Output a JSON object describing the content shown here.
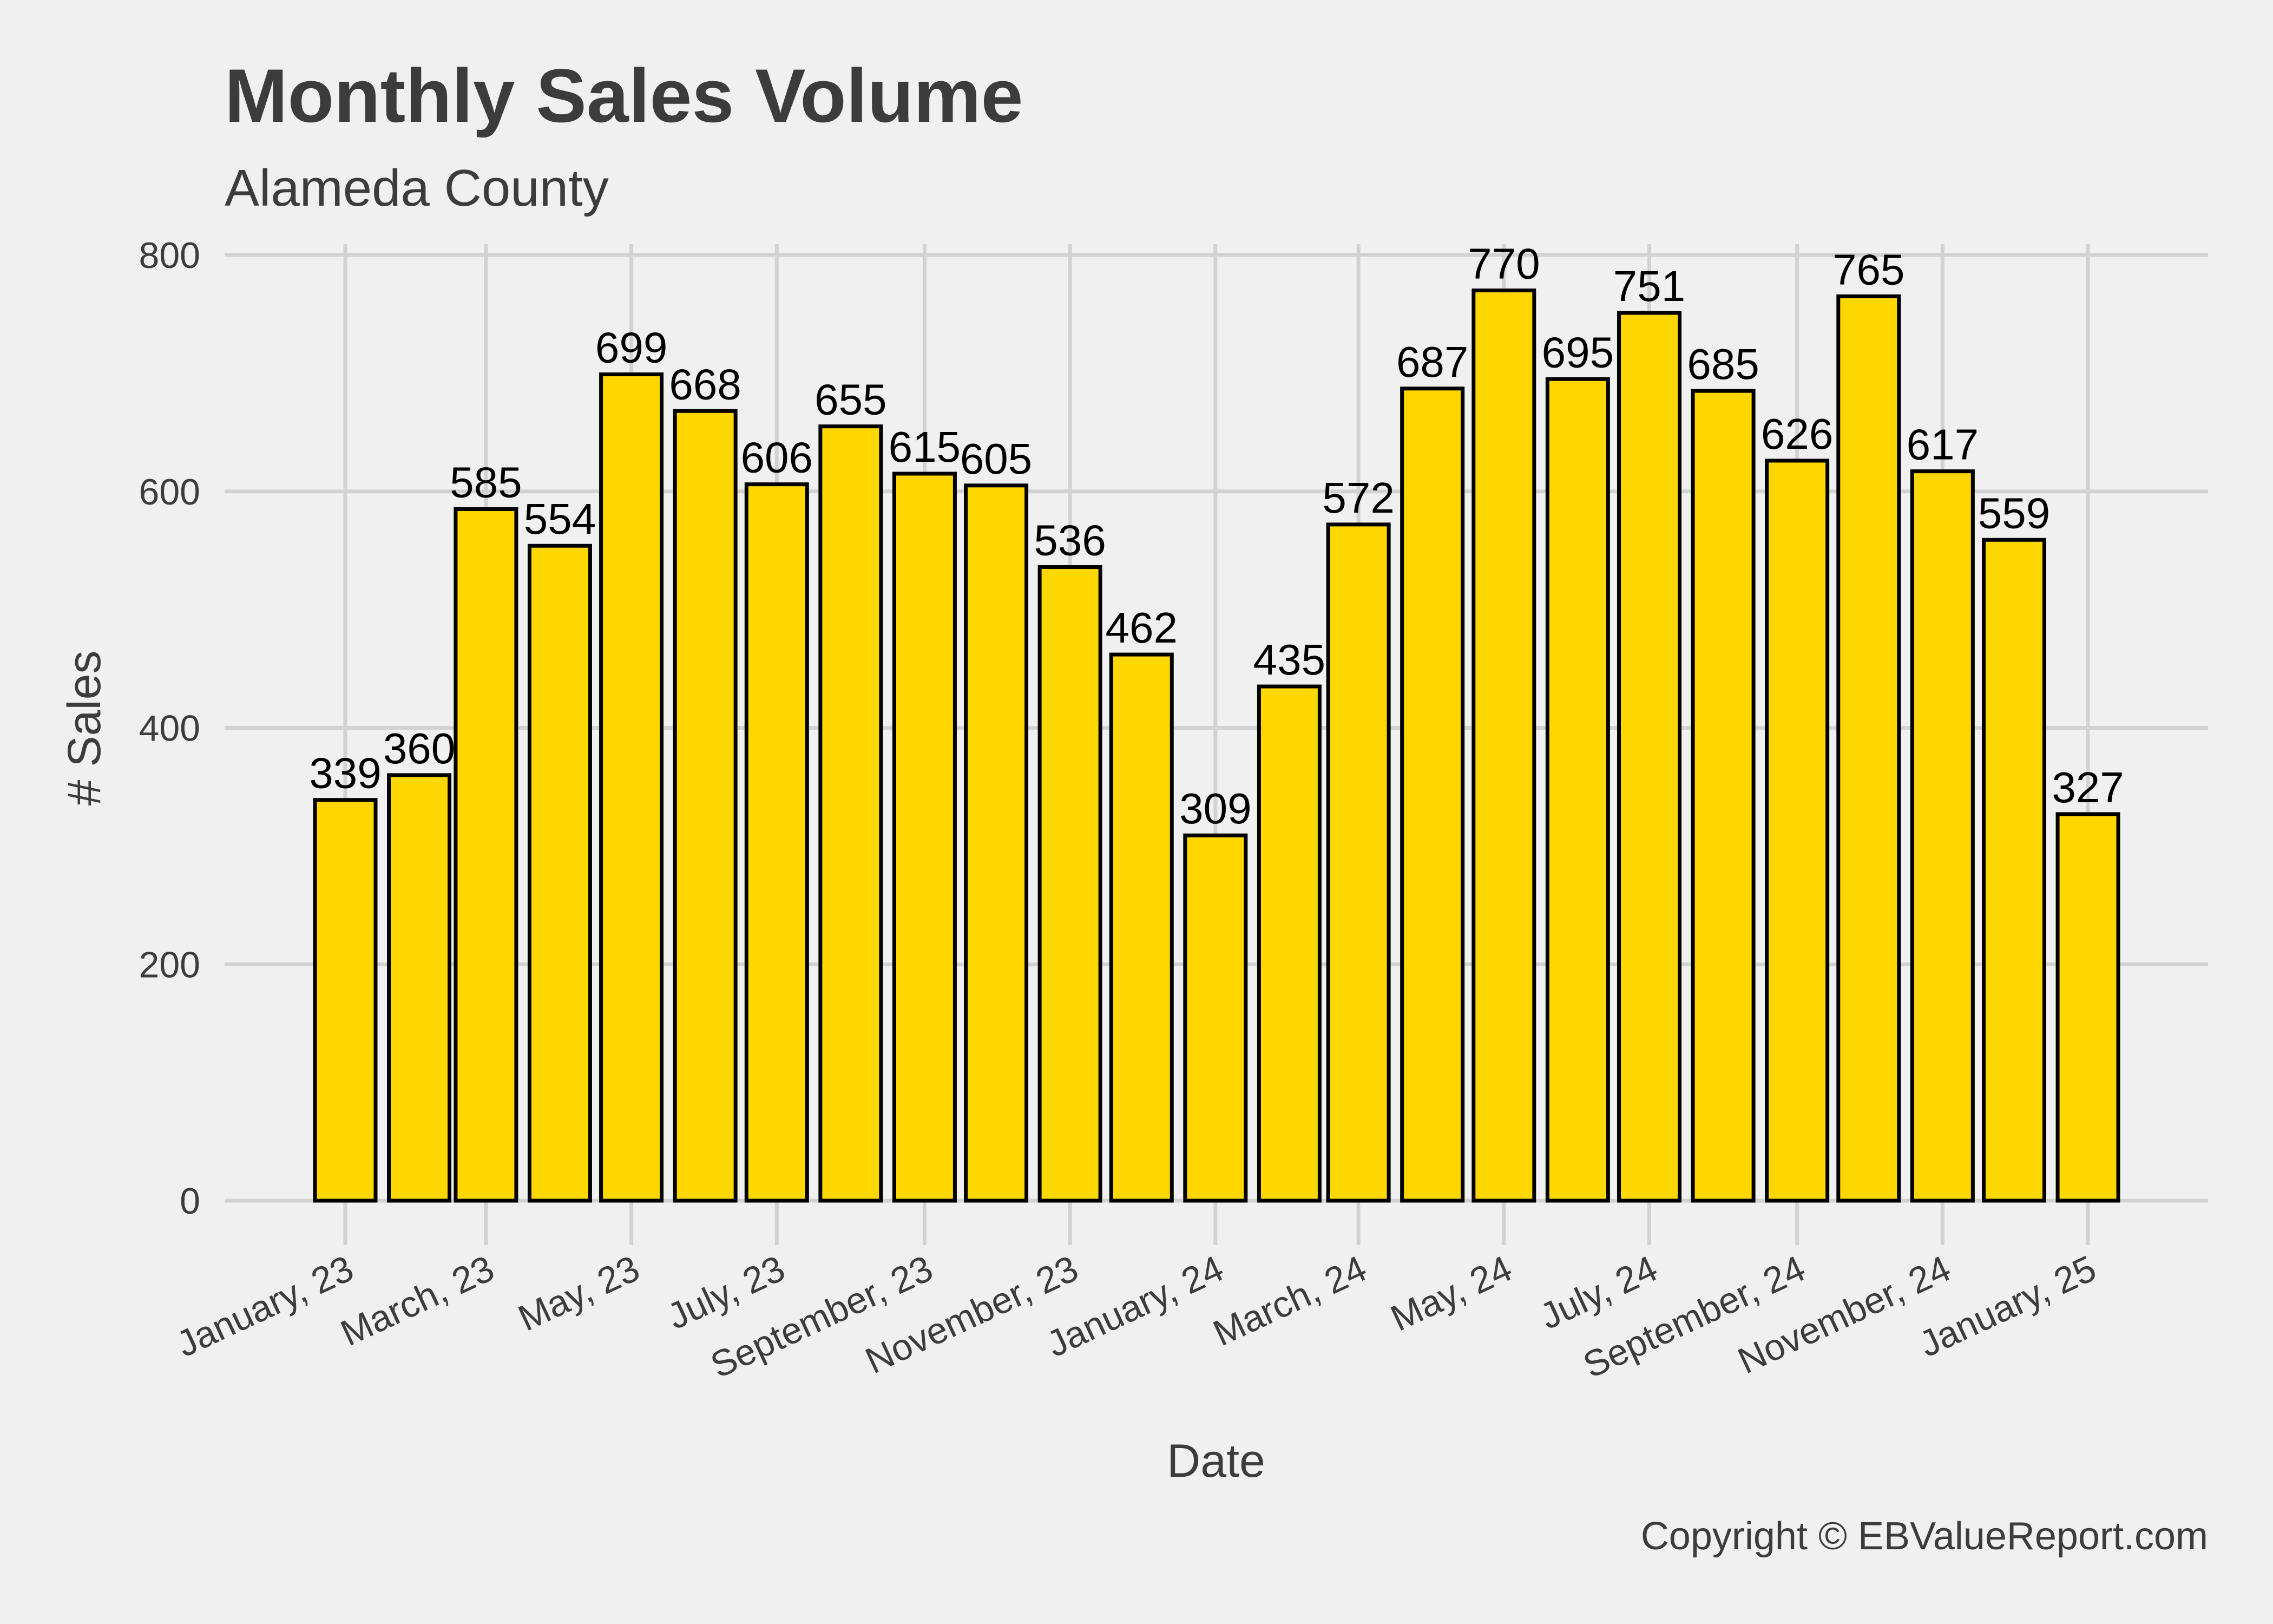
{
  "chart_data": {
    "type": "bar",
    "title": "Monthly Sales Volume",
    "subtitle": "Alameda County",
    "xlabel": "Date",
    "ylabel": "# Sales",
    "caption": "Copyright  © EBValueReport.com",
    "ylim": [
      0,
      800
    ],
    "yticks": [
      0,
      200,
      400,
      600,
      800
    ],
    "grid": true,
    "bar_fill": "#FFD700",
    "bar_edge": "#000000",
    "background": "#f0f0f0",
    "categories": [
      "2023-01",
      "2023-02",
      "2023-03",
      "2023-04",
      "2023-05",
      "2023-06",
      "2023-07",
      "2023-08",
      "2023-09",
      "2023-10",
      "2023-11",
      "2023-12",
      "2024-01",
      "2024-02",
      "2024-03",
      "2024-04",
      "2024-05",
      "2024-06",
      "2024-07",
      "2024-08",
      "2024-09",
      "2024-10",
      "2024-11",
      "2024-12",
      "2025-01"
    ],
    "values": [
      339,
      360,
      585,
      554,
      699,
      668,
      606,
      655,
      615,
      605,
      536,
      462,
      309,
      435,
      572,
      687,
      770,
      695,
      751,
      685,
      626,
      765,
      617,
      559,
      327
    ],
    "xticks": [
      {
        "date": "2023-01",
        "label": "January, 23"
      },
      {
        "date": "2023-03",
        "label": "March, 23"
      },
      {
        "date": "2023-05",
        "label": "May, 23"
      },
      {
        "date": "2023-07",
        "label": "July, 23"
      },
      {
        "date": "2023-09",
        "label": "September, 23"
      },
      {
        "date": "2023-11",
        "label": "November, 23"
      },
      {
        "date": "2024-01",
        "label": "January, 24"
      },
      {
        "date": "2024-03",
        "label": "March, 24"
      },
      {
        "date": "2024-05",
        "label": "May, 24"
      },
      {
        "date": "2024-07",
        "label": "July, 24"
      },
      {
        "date": "2024-09",
        "label": "September, 24"
      },
      {
        "date": "2024-11",
        "label": "November, 24"
      },
      {
        "date": "2025-01",
        "label": "January, 25"
      }
    ]
  }
}
